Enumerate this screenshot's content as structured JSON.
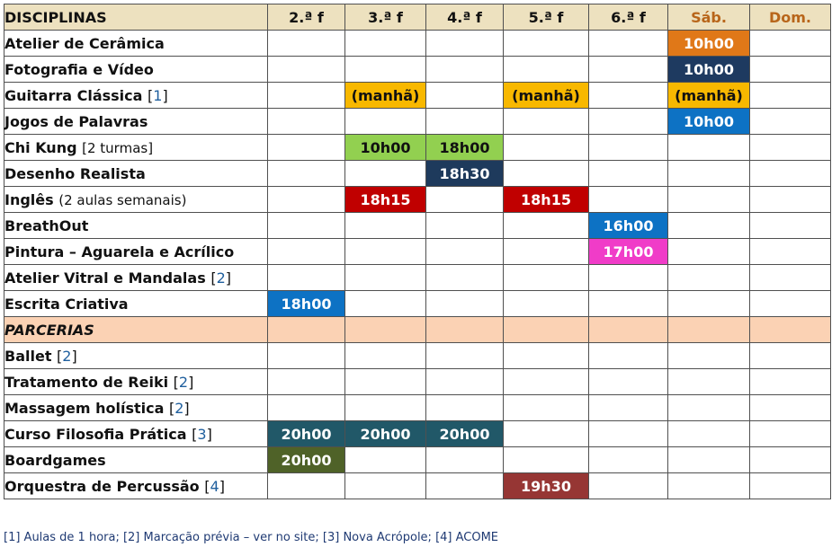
{
  "header": {
    "title": "DISCIPLINAS",
    "days": [
      "2.ª f",
      "3.ª f",
      "4.ª f",
      "5.ª f",
      "6.ª f",
      "Sáb.",
      "Dom."
    ],
    "weekend_color": "#b8651a",
    "header_bg": "#ede1bf"
  },
  "rows": [
    {
      "name": "Atelier de Cerâmica",
      "note": "",
      "ref": "",
      "slots": {
        "5": {
          "text": "10h00",
          "color": "#e07818"
        }
      }
    },
    {
      "name": "Fotografia e Vídeo",
      "note": "",
      "ref": "",
      "slots": {
        "5": {
          "text": "10h00",
          "color": "#1e3a60"
        }
      }
    },
    {
      "name": "Guitarra Clássica",
      "note": "",
      "ref": "1",
      "slots": {
        "1": {
          "text": "(manhã)",
          "color": "#f8b800",
          "dark": true
        },
        "3": {
          "text": "(manhã)",
          "color": "#f8b800",
          "dark": true
        },
        "5": {
          "text": "(manhã)",
          "color": "#f8b800",
          "dark": true
        }
      }
    },
    {
      "name": "Jogos de Palavras",
      "note": "",
      "ref": "",
      "slots": {
        "5": {
          "text": "10h00",
          "color": "#0d72c4"
        }
      }
    },
    {
      "name": "Chi Kung",
      "note": "[2 turmas]",
      "ref": "",
      "slots": {
        "1": {
          "text": "10h00",
          "color": "#92d050",
          "dark": true
        },
        "2": {
          "text": "18h00",
          "color": "#92d050",
          "dark": true
        }
      }
    },
    {
      "name": "Desenho Realista",
      "note": "",
      "ref": "",
      "slots": {
        "2": {
          "text": "18h30",
          "color": "#1e3a5c"
        }
      }
    },
    {
      "name": "Inglês",
      "note": "(2 aulas semanais)",
      "ref": "",
      "slots": {
        "1": {
          "text": "18h15",
          "color": "#c00000"
        },
        "3": {
          "text": "18h15",
          "color": "#c00000"
        }
      }
    },
    {
      "name": "BreathOut",
      "note": "",
      "ref": "",
      "slots": {
        "4": {
          "text": "16h00",
          "color": "#0d72c4"
        }
      }
    },
    {
      "name": "Pintura – Aguarela e Acrílico",
      "note": "",
      "ref": "",
      "slots": {
        "4": {
          "text": "17h00",
          "color": "#f03cc8"
        }
      }
    },
    {
      "name": "Atelier Vitral e Mandalas",
      "note": "",
      "ref": "2",
      "slots": {}
    },
    {
      "name": "Escrita Criativa",
      "note": "",
      "ref": "",
      "slots": {
        "0": {
          "text": "18h00",
          "color": "#0d72c4"
        }
      }
    },
    {
      "name": "PARCERIAS",
      "note": "",
      "ref": "",
      "section": true,
      "slots": {}
    },
    {
      "name": "Ballet",
      "note": "",
      "ref": "2",
      "slots": {}
    },
    {
      "name": "Tratamento de Reiki",
      "note": "",
      "ref": "2",
      "slots": {}
    },
    {
      "name": "Massagem holística",
      "note": "",
      "ref": "2",
      "slots": {}
    },
    {
      "name": "Curso Filosofia Prática",
      "note": "",
      "ref": "3",
      "slots": {
        "0": {
          "text": "20h00",
          "color": "#215868"
        },
        "1": {
          "text": "20h00",
          "color": "#215868"
        },
        "2": {
          "text": "20h00",
          "color": "#215868"
        }
      }
    },
    {
      "name": "Boardgames",
      "note": "",
      "ref": "",
      "slots": {
        "0": {
          "text": "20h00",
          "color": "#4f6228"
        }
      }
    },
    {
      "name": "Orquestra de Percussão",
      "note": "",
      "ref": "4",
      "slots": {
        "3": {
          "text": "19h30",
          "color": "#963634"
        }
      }
    }
  ],
  "footer": "[1] Aulas de 1 hora; [2] Marcação prévia – ver no site; [3] Nova Acrópole; [4] ACOME"
}
